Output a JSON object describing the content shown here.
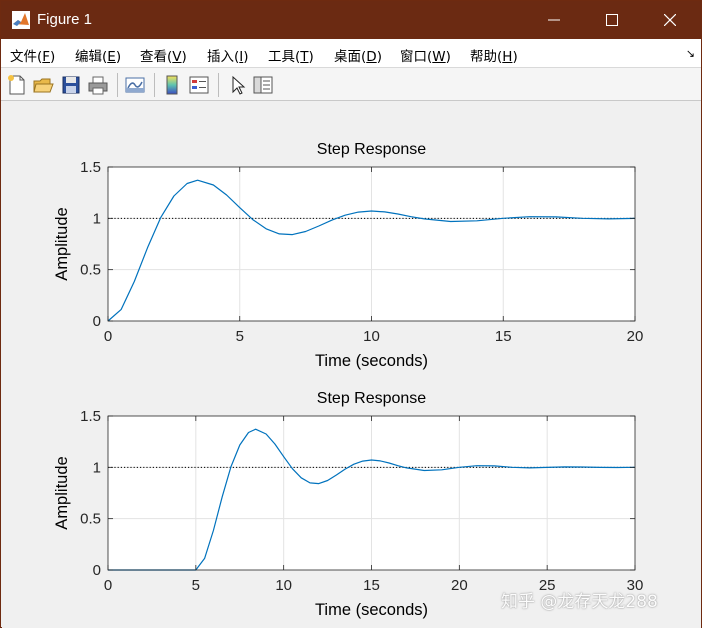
{
  "window": {
    "title": "Figure 1",
    "titlebar_color": "#6b2a12"
  },
  "menubar": {
    "items": [
      {
        "label": "文件(",
        "mnemonic": "F",
        "close": ")"
      },
      {
        "label": "编辑(",
        "mnemonic": "E",
        "close": ")"
      },
      {
        "label": "查看(",
        "mnemonic": "V",
        "close": ")"
      },
      {
        "label": "插入(",
        "mnemonic": "I",
        "close": ")"
      },
      {
        "label": "工具(",
        "mnemonic": "T",
        "close": ")"
      },
      {
        "label": "桌面(",
        "mnemonic": "D",
        "close": ")"
      },
      {
        "label": "窗口(",
        "mnemonic": "W",
        "close": ")"
      },
      {
        "label": "帮助(",
        "mnemonic": "H",
        "close": ")"
      }
    ],
    "overflow_glyph": "↘"
  },
  "toolbar": {
    "icons": [
      "new-figure-icon",
      "open-file-icon",
      "save-icon",
      "print-icon",
      "link-plot-icon",
      "insert-colorbar-icon",
      "insert-legend-icon",
      "pointer-icon",
      "property-inspector-icon"
    ]
  },
  "chart_data": [
    {
      "type": "line",
      "title": "Step Response",
      "xlabel": "Time (seconds)",
      "ylabel": "Amplitude",
      "xlim": [
        0,
        20
      ],
      "ylim": [
        0,
        1.5
      ],
      "xticks": [
        "0",
        "5",
        "10",
        "15",
        "20"
      ],
      "yticks": [
        "0",
        "0.5",
        "1",
        "1.5"
      ],
      "grid": true,
      "reference_line": 1,
      "series": [
        {
          "color": "#0072bd",
          "x": [
            0,
            0.5,
            1,
            1.5,
            2,
            2.5,
            3,
            3.4,
            4,
            4.5,
            5,
            5.5,
            6,
            6.5,
            7,
            7.5,
            8,
            8.5,
            9,
            9.5,
            10,
            10.5,
            11,
            11.5,
            12,
            13,
            14,
            15,
            16,
            17,
            18,
            19,
            20
          ],
          "y": [
            0,
            0.113,
            0.385,
            0.713,
            1.007,
            1.218,
            1.339,
            1.371,
            1.325,
            1.227,
            1.104,
            0.987,
            0.898,
            0.848,
            0.842,
            0.872,
            0.925,
            0.983,
            1.031,
            1.061,
            1.071,
            1.063,
            1.042,
            1.016,
            0.994,
            0.969,
            0.976,
            1.0,
            1.016,
            1.014,
            1.0,
            0.994,
            0.999
          ]
        }
      ]
    },
    {
      "type": "line",
      "title": "Step Response",
      "xlabel": "Time (seconds)",
      "ylabel": "Amplitude",
      "xlim": [
        0,
        30
      ],
      "ylim": [
        0,
        1.5
      ],
      "xticks": [
        "0",
        "5",
        "10",
        "15",
        "20",
        "25",
        "30"
      ],
      "yticks": [
        "0",
        "0.5",
        "1",
        "1.5"
      ],
      "grid": true,
      "reference_line": 1,
      "series": [
        {
          "color": "#0072bd",
          "x": [
            0,
            5,
            5.5,
            6,
            6.5,
            7,
            7.5,
            8,
            8.4,
            9,
            9.5,
            10,
            10.5,
            11,
            11.5,
            12,
            12.5,
            13,
            13.5,
            14,
            14.5,
            15,
            15.5,
            16,
            16.5,
            17,
            18,
            19,
            20,
            21,
            22,
            23,
            24,
            25,
            26,
            27,
            28,
            29,
            30
          ],
          "y": [
            0,
            0,
            0.113,
            0.385,
            0.713,
            1.007,
            1.218,
            1.339,
            1.371,
            1.325,
            1.227,
            1.104,
            0.987,
            0.898,
            0.848,
            0.842,
            0.872,
            0.925,
            0.983,
            1.031,
            1.061,
            1.071,
            1.063,
            1.042,
            1.016,
            0.994,
            0.969,
            0.976,
            1.0,
            1.016,
            1.014,
            1.0,
            0.994,
            0.999,
            1.004,
            1.003,
            0.999,
            0.998,
            1.0
          ]
        }
      ]
    }
  ],
  "watermark": "知乎 @龙存天龙288"
}
